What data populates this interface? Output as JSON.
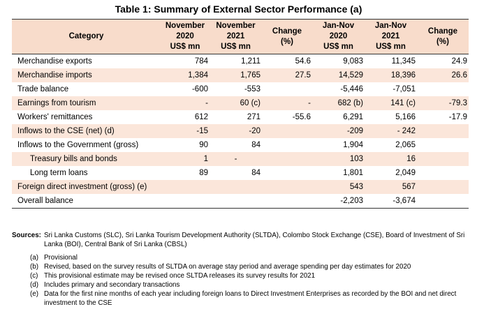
{
  "title": "Table 1: Summary of External Sector Performance (a)",
  "headers": {
    "category": "Category",
    "nov2020": [
      "November",
      "2020",
      "US$ mn"
    ],
    "nov2021": [
      "November",
      "2021",
      "US$ mn"
    ],
    "change1": [
      "Change",
      "(%)"
    ],
    "jannov2020": [
      "Jan-Nov",
      "2020",
      "US$ mn"
    ],
    "jannov2021": [
      "Jan-Nov",
      "2021",
      "US$ mn"
    ],
    "change2": [
      "Change",
      "(%)"
    ]
  },
  "rows": [
    {
      "label": "Merchandise exports",
      "nov2020": "784",
      "nov2021": "1,211",
      "change1": "54.6",
      "jn2020": "9,083",
      "jn2021": "11,345",
      "change2": "24.9"
    },
    {
      "label": "Merchandise imports",
      "nov2020": "1,384",
      "nov2021": "1,765",
      "change1": "27.5",
      "jn2020": "14,529",
      "jn2021": "18,396",
      "change2": "26.6"
    },
    {
      "label": "Trade balance",
      "nov2020": "-600",
      "nov2021": "-553",
      "change1": "",
      "jn2020": "-5,446",
      "jn2021": "-7,051",
      "change2": ""
    },
    {
      "label": "Earnings from tourism",
      "nov2020": "-",
      "nov2021": "60 (c)",
      "change1": "-",
      "jn2020": "682 (b)",
      "jn2021": "141 (c)",
      "change2": "-79.3"
    },
    {
      "label": "Workers' remittances",
      "nov2020": "612",
      "nov2021": "271",
      "change1": "-55.6",
      "jn2020": "6,291",
      "jn2021": "5,166",
      "change2": "-17.9"
    },
    {
      "label": "Inflows to the CSE (net) (d)",
      "nov2020": "-15",
      "nov2021": "-20",
      "change1": "",
      "jn2020": "-209",
      "jn2021": "- 242",
      "change2": ""
    },
    {
      "label": "Inflows to the Government (gross)",
      "nov2020": "90",
      "nov2021": "84",
      "change1": "",
      "jn2020": "1,904",
      "jn2021": "2,065",
      "change2": ""
    },
    {
      "label": "Treasury bills and bonds",
      "nov2020": "1",
      "nov2021": "-",
      "change1": "",
      "jn2020": "103",
      "jn2021": "16",
      "change2": ""
    },
    {
      "label": "Long term loans",
      "nov2020": "89",
      "nov2021": "84",
      "change1": "",
      "jn2020": "1,801",
      "jn2021": "2,049",
      "change2": ""
    },
    {
      "label": "Foreign direct investment (gross) (e)",
      "nov2020": "",
      "nov2021": "",
      "change1": "",
      "jn2020": "543",
      "jn2021": "567",
      "change2": ""
    },
    {
      "label": "Overall balance",
      "nov2020": "",
      "nov2021": "",
      "change1": "",
      "jn2020": "-2,203",
      "jn2021": "-3,674",
      "change2": ""
    }
  ],
  "sources_label": "Sources:",
  "sources_text": "Sri Lanka Customs (SLC), Sri Lanka Tourism Development Authority (SLTDA), Colombo Stock Exchange (CSE), Board of Investment of Sri Lanka (BOI), Central Bank of Sri Lanka (CBSL)",
  "footnotes": [
    {
      "key": "(a)",
      "text": "Provisional"
    },
    {
      "key": "(b)",
      "text": "Revised, based on the survey results of SLTDA on average stay period and average spending per day estimates for 2020"
    },
    {
      "key": "(c)",
      "text": "This provisional estimate may be revised once SLTDA releases its survey results for 2021"
    },
    {
      "key": "(d)",
      "text": "Includes primary and secondary transactions"
    },
    {
      "key": "(e)",
      "text": "Data for the first nine months of each year including foreign loans to Direct Investment Enterprises as recorded by the BOI and net direct investment to the CSE"
    }
  ]
}
